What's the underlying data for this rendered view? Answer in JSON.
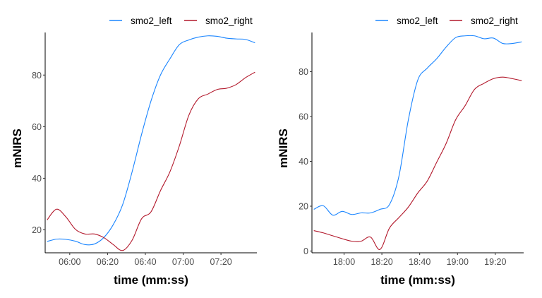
{
  "chart_data": [
    {
      "type": "line",
      "xlabel": "time (mm:ss)",
      "ylabel": "mNIRS",
      "xlim": [
        "05:47",
        "07:39"
      ],
      "ylim": [
        11.1,
        96.5
      ],
      "x_ticks": [
        "06:00",
        "06:20",
        "06:40",
        "07:00",
        "07:20"
      ],
      "y_ticks": [
        20,
        40,
        60,
        80
      ],
      "grid": false,
      "legend": "top-right",
      "x": [
        "05:48",
        "05:53",
        "05:58",
        "06:03",
        "06:08",
        "06:13",
        "06:18",
        "06:23",
        "06:28",
        "06:33",
        "06:38",
        "06:43",
        "06:48",
        "06:53",
        "06:58",
        "07:03",
        "07:08",
        "07:13",
        "07:18",
        "07:23",
        "07:28",
        "07:33",
        "07:38"
      ],
      "series": [
        {
          "name": "smo2_left",
          "color": "#1a85ff",
          "values": [
            15.5,
            16.4,
            16.3,
            15.6,
            14.3,
            14.5,
            17.0,
            22.0,
            29.8,
            42.5,
            57.0,
            70.0,
            80.0,
            86.3,
            91.8,
            93.6,
            94.7,
            95.2,
            95.0,
            94.3,
            94.0,
            93.8,
            92.5
          ]
        },
        {
          "name": "smo2_right",
          "color": "#b2182b",
          "values": [
            23.8,
            28.0,
            25.0,
            20.2,
            18.4,
            18.4,
            17.0,
            14.3,
            12.0,
            16.0,
            24.3,
            27.0,
            35.2,
            42.5,
            52.6,
            64.4,
            70.8,
            72.6,
            74.4,
            74.9,
            76.3,
            79.0,
            81.1
          ]
        }
      ]
    },
    {
      "type": "line",
      "xlabel": "time (mm:ss)",
      "ylabel": "mNIRS",
      "xlim": [
        "17:43",
        "19:35"
      ],
      "ylim": [
        -0.8,
        97.5
      ],
      "x_ticks": [
        "18:00",
        "18:20",
        "18:40",
        "19:00",
        "19:20"
      ],
      "y_ticks": [
        0,
        20,
        40,
        60,
        80
      ],
      "grid": false,
      "legend": "top-right",
      "x": [
        "17:44",
        "17:49",
        "17:54",
        "17:59",
        "18:04",
        "18:09",
        "18:14",
        "18:19",
        "18:24",
        "18:29",
        "18:34",
        "18:39",
        "18:44",
        "18:49",
        "18:54",
        "18:59",
        "19:04",
        "19:09",
        "19:14",
        "19:19",
        "19:24",
        "19:29",
        "19:34"
      ],
      "series": [
        {
          "name": "smo2_left",
          "color": "#1a85ff",
          "values": [
            18.6,
            20.2,
            16.0,
            17.7,
            16.3,
            17.0,
            17.0,
            18.6,
            20.7,
            33.3,
            58.5,
            76.3,
            81.6,
            85.8,
            91.0,
            95.2,
            96.0,
            96.0,
            94.7,
            95.0,
            92.6,
            92.6,
            93.3
          ]
        },
        {
          "name": "smo2_right",
          "color": "#b2182b",
          "values": [
            9.1,
            8.1,
            6.8,
            5.5,
            4.4,
            4.4,
            6.2,
            0.7,
            10.2,
            14.9,
            19.6,
            25.9,
            31.2,
            39.6,
            48.0,
            58.5,
            64.8,
            72.1,
            74.8,
            76.9,
            77.6,
            76.9,
            76.0
          ]
        }
      ]
    }
  ]
}
